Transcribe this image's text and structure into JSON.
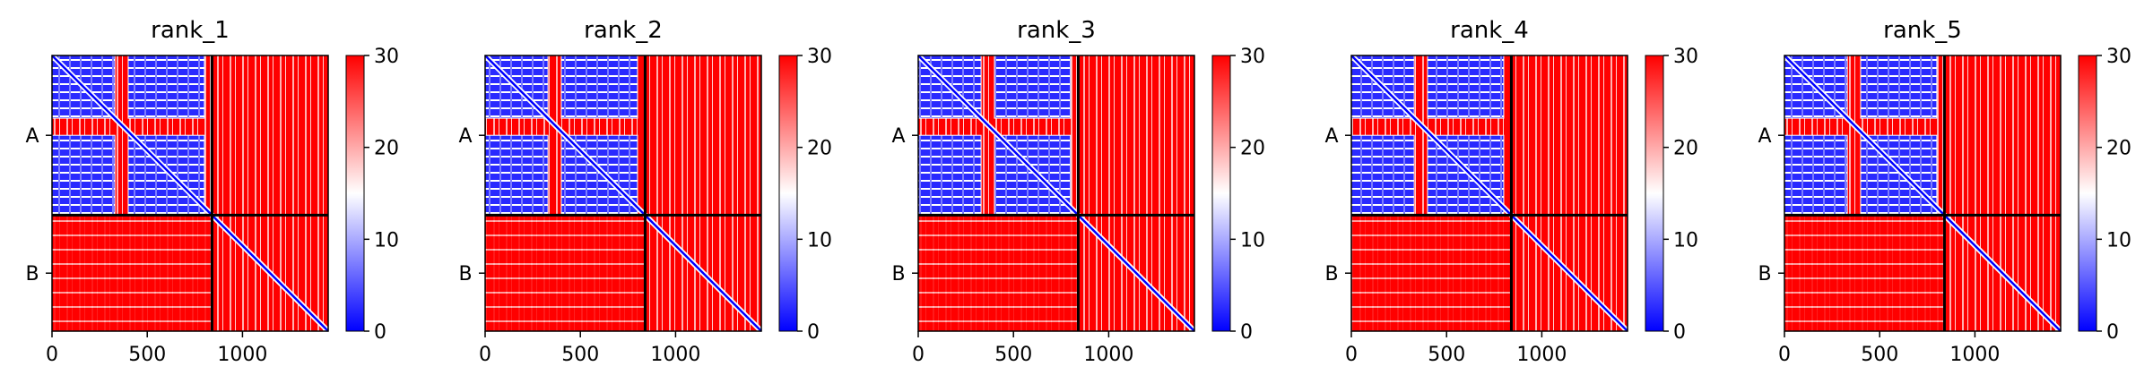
{
  "figure": {
    "colorbar": {
      "ticks": [
        0,
        10,
        20,
        30
      ],
      "range": [
        0,
        30
      ],
      "colormap": "bwr",
      "colors": {
        "low": "#0000ff",
        "mid": "#ffffff",
        "high": "#ff0000"
      }
    }
  },
  "chart_data": [
    {
      "type": "heatmap",
      "title": "rank_1",
      "x_ticks": [
        0,
        500,
        1000
      ],
      "xlim": [
        0,
        1450
      ],
      "y_labels": [
        "A",
        "B"
      ],
      "chain_boundary": 840,
      "color_range": [
        0,
        30
      ],
      "low_value_blocks": [
        {
          "x": [
            0,
            330
          ],
          "y": [
            0,
            330
          ],
          "value": 3
        },
        {
          "x": [
            400,
            800
          ],
          "y": [
            0,
            330
          ],
          "value": 5
        },
        {
          "x": [
            0,
            330
          ],
          "y": [
            420,
            840
          ],
          "value": 5
        },
        {
          "x": [
            400,
            800
          ],
          "y": [
            420,
            840
          ],
          "value": 4
        }
      ],
      "background_value": 30,
      "diagonal_value": 1
    },
    {
      "type": "heatmap",
      "title": "rank_2",
      "x_ticks": [
        0,
        500,
        1000
      ],
      "xlim": [
        0,
        1450
      ],
      "y_labels": [
        "A",
        "B"
      ],
      "chain_boundary": 840,
      "color_range": [
        0,
        30
      ],
      "low_value_blocks": [
        {
          "x": [
            0,
            330
          ],
          "y": [
            0,
            330
          ],
          "value": 3
        },
        {
          "x": [
            400,
            800
          ],
          "y": [
            0,
            330
          ],
          "value": 5
        },
        {
          "x": [
            0,
            330
          ],
          "y": [
            420,
            840
          ],
          "value": 5
        },
        {
          "x": [
            400,
            800
          ],
          "y": [
            420,
            840
          ],
          "value": 4
        }
      ],
      "background_value": 30,
      "diagonal_value": 1
    },
    {
      "type": "heatmap",
      "title": "rank_3",
      "x_ticks": [
        0,
        500,
        1000
      ],
      "xlim": [
        0,
        1450
      ],
      "y_labels": [
        "A",
        "B"
      ],
      "chain_boundary": 840,
      "color_range": [
        0,
        30
      ],
      "low_value_blocks": [
        {
          "x": [
            0,
            330
          ],
          "y": [
            0,
            330
          ],
          "value": 3
        },
        {
          "x": [
            400,
            800
          ],
          "y": [
            0,
            330
          ],
          "value": 5
        },
        {
          "x": [
            0,
            330
          ],
          "y": [
            420,
            840
          ],
          "value": 5
        },
        {
          "x": [
            400,
            800
          ],
          "y": [
            420,
            840
          ],
          "value": 4
        }
      ],
      "background_value": 30,
      "diagonal_value": 1
    },
    {
      "type": "heatmap",
      "title": "rank_4",
      "x_ticks": [
        0,
        500,
        1000
      ],
      "xlim": [
        0,
        1450
      ],
      "y_labels": [
        "A",
        "B"
      ],
      "chain_boundary": 840,
      "color_range": [
        0,
        30
      ],
      "low_value_blocks": [
        {
          "x": [
            0,
            330
          ],
          "y": [
            0,
            330
          ],
          "value": 3
        },
        {
          "x": [
            400,
            800
          ],
          "y": [
            0,
            330
          ],
          "value": 5
        },
        {
          "x": [
            0,
            330
          ],
          "y": [
            420,
            840
          ],
          "value": 5
        },
        {
          "x": [
            400,
            800
          ],
          "y": [
            420,
            840
          ],
          "value": 4
        }
      ],
      "background_value": 30,
      "diagonal_value": 1
    },
    {
      "type": "heatmap",
      "title": "rank_5",
      "x_ticks": [
        0,
        500,
        1000
      ],
      "xlim": [
        0,
        1450
      ],
      "y_labels": [
        "A",
        "B"
      ],
      "chain_boundary": 840,
      "color_range": [
        0,
        30
      ],
      "low_value_blocks": [
        {
          "x": [
            0,
            330
          ],
          "y": [
            0,
            330
          ],
          "value": 3
        },
        {
          "x": [
            400,
            800
          ],
          "y": [
            0,
            330
          ],
          "value": 5
        },
        {
          "x": [
            0,
            330
          ],
          "y": [
            420,
            840
          ],
          "value": 5
        },
        {
          "x": [
            400,
            800
          ],
          "y": [
            420,
            840
          ],
          "value": 4
        }
      ],
      "background_value": 30,
      "diagonal_value": 1
    }
  ]
}
